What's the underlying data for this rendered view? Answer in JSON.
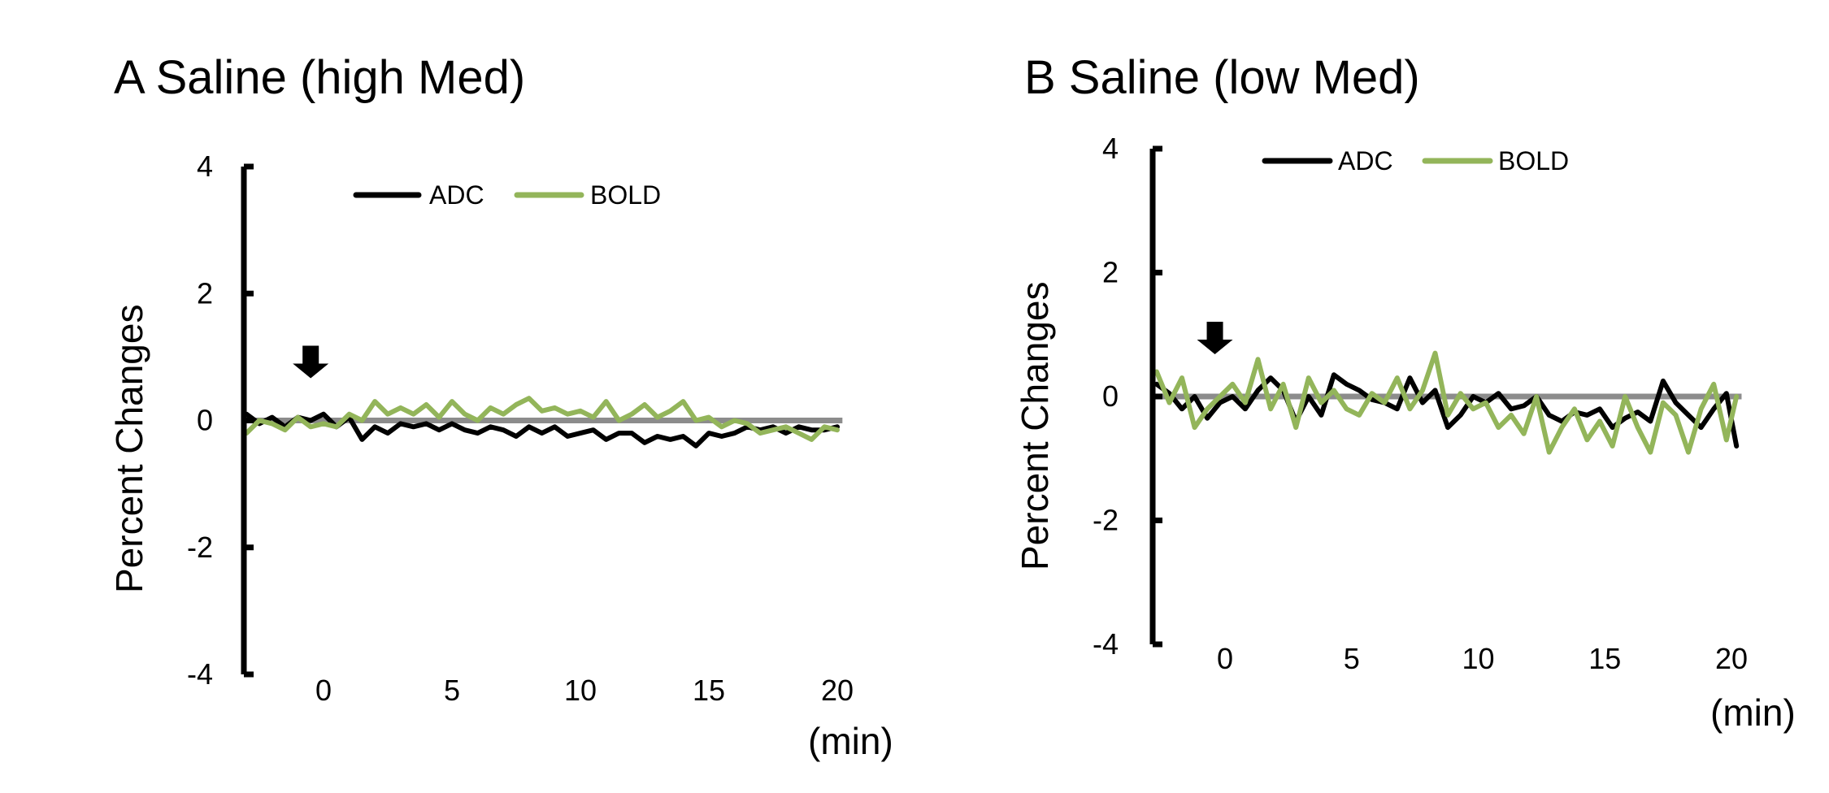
{
  "figure": {
    "panels": [
      {
        "title": "A Saline (high Med)",
        "ylabel": "Percent Changes",
        "xunit": "(min)"
      },
      {
        "title": "B Saline (low Med)",
        "ylabel": "Percent Changes",
        "xunit": "(min)"
      }
    ]
  },
  "colors": {
    "adc": "#000000",
    "bold": "#93b55a",
    "baseline": "#8c8c8c",
    "axis": "#000000",
    "arrow": "#000000"
  },
  "chart_data": [
    {
      "type": "line",
      "title": "A Saline (high Med)",
      "xlabel": "(min)",
      "ylabel": "Percent Changes",
      "xlim": [
        -3.2,
        20.2
      ],
      "ylim": [
        -4,
        4
      ],
      "xticks": [
        0,
        5,
        10,
        15,
        20
      ],
      "yticks": [
        4,
        2,
        0,
        -2,
        -4
      ],
      "grid": false,
      "legend": "top",
      "baseline": 0,
      "injection_arrow_x": -0.5,
      "series": [
        {
          "name": "ADC",
          "x": [
            -3,
            -2.5,
            -2,
            -1.5,
            -1,
            -0.5,
            0,
            0.5,
            1,
            1.5,
            2,
            2.5,
            3,
            3.5,
            4,
            4.5,
            5,
            5.5,
            6,
            6.5,
            7,
            7.5,
            8,
            8.5,
            9,
            9.5,
            10,
            10.5,
            11,
            11.5,
            12,
            12.5,
            13,
            13.5,
            14,
            14.5,
            15,
            15.5,
            16,
            16.5,
            17,
            17.5,
            18,
            18.5,
            19,
            19.5,
            20
          ],
          "y": [
            0.1,
            -0.05,
            0.05,
            -0.1,
            0.05,
            0.0,
            0.1,
            -0.1,
            0.05,
            -0.3,
            -0.1,
            -0.2,
            -0.05,
            -0.1,
            -0.05,
            -0.15,
            -0.05,
            -0.15,
            -0.2,
            -0.1,
            -0.15,
            -0.25,
            -0.1,
            -0.2,
            -0.1,
            -0.25,
            -0.2,
            -0.15,
            -0.3,
            -0.2,
            -0.2,
            -0.35,
            -0.25,
            -0.3,
            -0.25,
            -0.4,
            -0.2,
            -0.25,
            -0.2,
            -0.1,
            -0.15,
            -0.1,
            -0.2,
            -0.1,
            -0.15,
            -0.15,
            -0.1
          ]
        },
        {
          "name": "BOLD",
          "x": [
            -3,
            -2.5,
            -2,
            -1.5,
            -1,
            -0.5,
            0,
            0.5,
            1,
            1.5,
            2,
            2.5,
            3,
            3.5,
            4,
            4.5,
            5,
            5.5,
            6,
            6.5,
            7,
            7.5,
            8,
            8.5,
            9,
            9.5,
            10,
            10.5,
            11,
            11.5,
            12,
            12.5,
            13,
            13.5,
            14,
            14.5,
            15,
            15.5,
            16,
            16.5,
            17,
            17.5,
            18,
            18.5,
            19,
            19.5,
            20
          ],
          "y": [
            -0.2,
            0.0,
            -0.05,
            -0.15,
            0.05,
            -0.1,
            -0.05,
            -0.1,
            0.1,
            0.0,
            0.3,
            0.1,
            0.2,
            0.1,
            0.25,
            0.05,
            0.3,
            0.1,
            0.0,
            0.2,
            0.1,
            0.25,
            0.35,
            0.15,
            0.2,
            0.1,
            0.15,
            0.05,
            0.3,
            0.0,
            0.1,
            0.25,
            0.05,
            0.15,
            0.3,
            0.0,
            0.05,
            -0.1,
            0.0,
            -0.05,
            -0.2,
            -0.15,
            -0.1,
            -0.2,
            -0.3,
            -0.1,
            -0.15
          ]
        }
      ]
    },
    {
      "type": "line",
      "title": "B Saline (low Med)",
      "xlabel": "(min)",
      "ylabel": "Percent Changes",
      "xlim": [
        -2.9,
        20.4
      ],
      "ylim": [
        -4,
        4
      ],
      "xticks": [
        0,
        5,
        10,
        15,
        20
      ],
      "yticks": [
        4,
        2,
        0,
        -2,
        -4
      ],
      "grid": false,
      "legend": "top",
      "baseline": 0,
      "injection_arrow_x": -0.4,
      "series": [
        {
          "name": "ADC",
          "x": [
            -2.7,
            -2.2,
            -1.7,
            -1.2,
            -0.7,
            -0.2,
            0.3,
            0.8,
            1.3,
            1.8,
            2.3,
            2.8,
            3.3,
            3.8,
            4.3,
            4.8,
            5.3,
            5.8,
            6.3,
            6.8,
            7.3,
            7.8,
            8.3,
            8.8,
            9.3,
            9.8,
            10.3,
            10.8,
            11.3,
            11.8,
            12.3,
            12.8,
            13.3,
            13.8,
            14.3,
            14.8,
            15.3,
            15.8,
            16.3,
            16.8,
            17.3,
            17.8,
            18.3,
            18.8,
            19.3,
            19.8,
            20.2
          ],
          "y": [
            0.2,
            0.05,
            -0.2,
            0.0,
            -0.35,
            -0.1,
            0.0,
            -0.2,
            0.1,
            0.3,
            0.1,
            -0.4,
            0.0,
            -0.3,
            0.35,
            0.2,
            0.1,
            -0.05,
            -0.1,
            -0.2,
            0.3,
            -0.1,
            0.1,
            -0.5,
            -0.3,
            0.0,
            -0.1,
            0.05,
            -0.2,
            -0.15,
            0.0,
            -0.3,
            -0.4,
            -0.25,
            -0.3,
            -0.2,
            -0.5,
            -0.35,
            -0.25,
            -0.4,
            0.25,
            -0.1,
            -0.3,
            -0.5,
            -0.2,
            0.05,
            -0.8
          ]
        },
        {
          "name": "BOLD",
          "x": [
            -2.7,
            -2.2,
            -1.7,
            -1.2,
            -0.7,
            -0.2,
            0.3,
            0.8,
            1.3,
            1.8,
            2.3,
            2.8,
            3.3,
            3.8,
            4.3,
            4.8,
            5.3,
            5.8,
            6.3,
            6.8,
            7.3,
            7.8,
            8.3,
            8.8,
            9.3,
            9.8,
            10.3,
            10.8,
            11.3,
            11.8,
            12.3,
            12.8,
            13.3,
            13.8,
            14.3,
            14.8,
            15.3,
            15.8,
            16.3,
            16.8,
            17.3,
            17.8,
            18.3,
            18.8,
            19.3,
            19.8,
            20.2
          ],
          "y": [
            0.4,
            -0.1,
            0.3,
            -0.5,
            -0.2,
            0.0,
            0.2,
            -0.1,
            0.6,
            -0.2,
            0.2,
            -0.5,
            0.3,
            -0.1,
            0.1,
            -0.2,
            -0.3,
            0.05,
            -0.1,
            0.3,
            -0.2,
            0.1,
            0.7,
            -0.3,
            0.05,
            -0.2,
            -0.1,
            -0.5,
            -0.3,
            -0.6,
            0.0,
            -0.9,
            -0.5,
            -0.2,
            -0.7,
            -0.4,
            -0.8,
            0.0,
            -0.5,
            -0.9,
            -0.1,
            -0.3,
            -0.9,
            -0.2,
            0.2,
            -0.7,
            0.0
          ]
        }
      ]
    }
  ]
}
